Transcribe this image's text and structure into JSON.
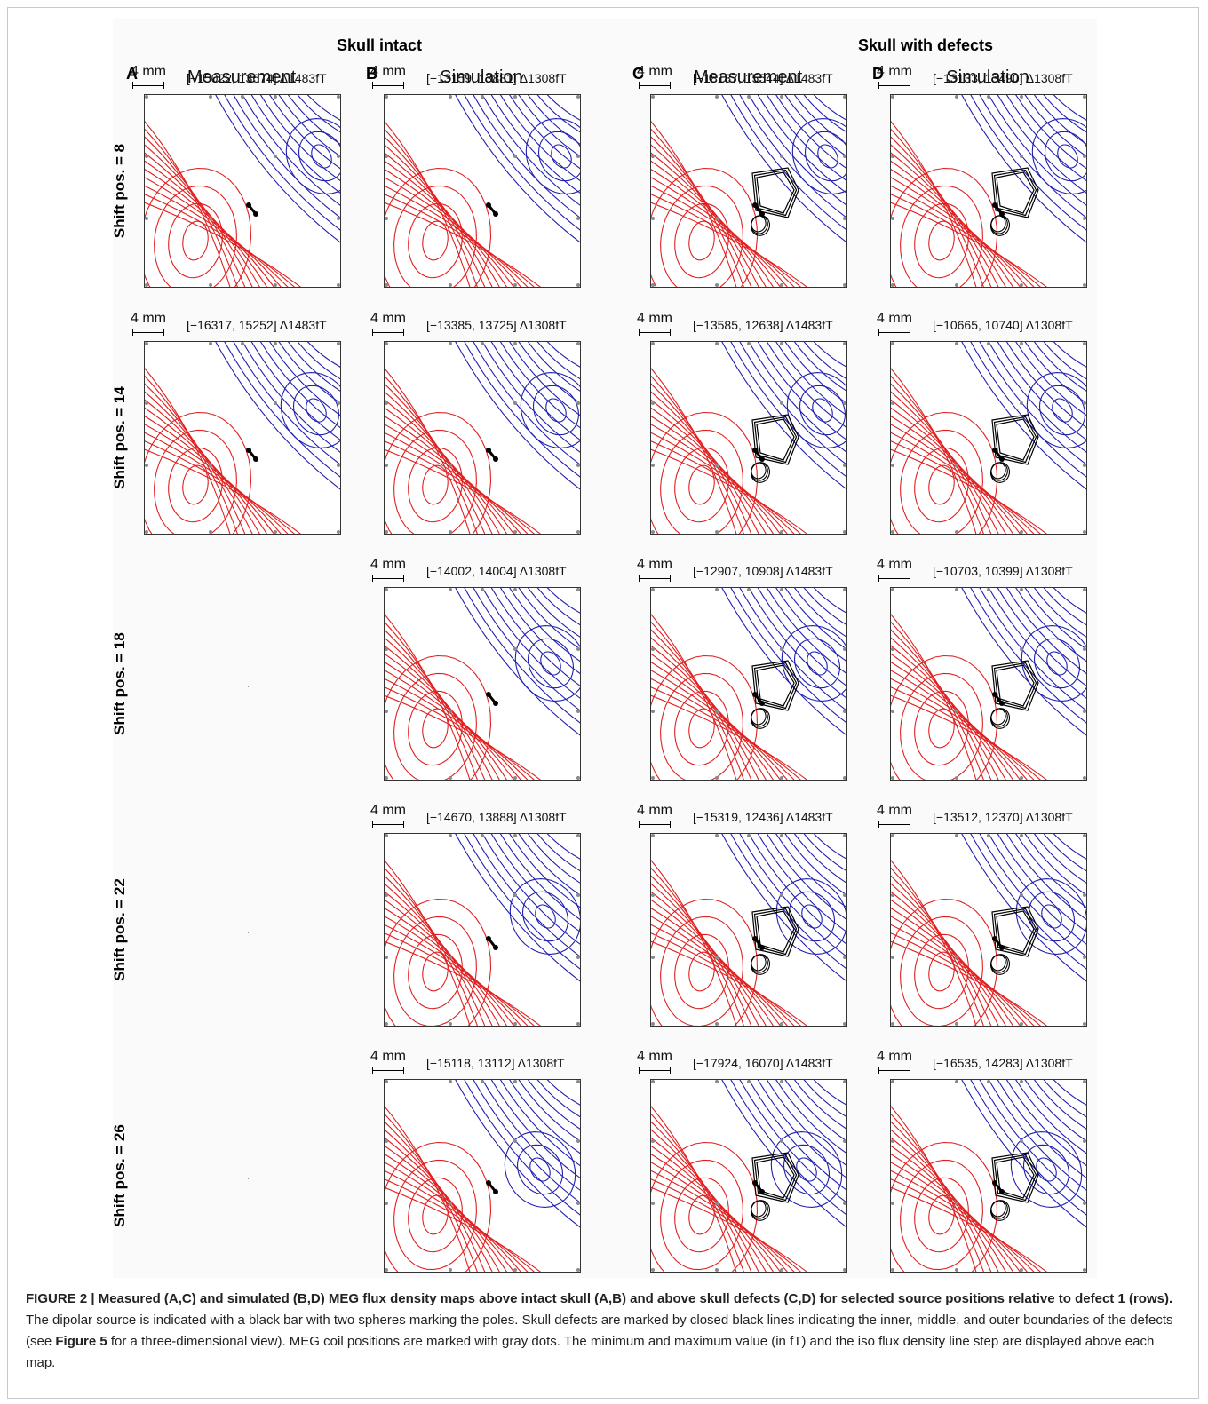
{
  "groups": [
    {
      "label": "Skull intact"
    },
    {
      "label": "Skull with defects"
    }
  ],
  "columns": [
    {
      "letter": "A",
      "title": "Measurement"
    },
    {
      "letter": "B",
      "title": "Simulation"
    },
    {
      "letter": "C",
      "title": "Measurement"
    },
    {
      "letter": "D",
      "title": "Simulation"
    }
  ],
  "rows": [
    {
      "label": "Shift pos. = 8"
    },
    {
      "label": "Shift pos. = 14"
    },
    {
      "label": "Shift pos. = 18"
    },
    {
      "label": "Shift pos. = 22"
    },
    {
      "label": "Shift pos. = 26"
    }
  ],
  "scale_bar": "4 mm",
  "colors": {
    "positive": "#e02020",
    "negative": "#1f1fb0",
    "defect": "#000000",
    "coil": "#8a8a8a"
  },
  "maps": [
    {
      "row": 0,
      "col": 0,
      "range": "[−15022, 13674] Δ1483fT"
    },
    {
      "row": 0,
      "col": 1,
      "range": "[−13159, 13881] Δ1308fT"
    },
    {
      "row": 0,
      "col": 2,
      "range": "[−18187, 15544] Δ1483fT"
    },
    {
      "row": 0,
      "col": 3,
      "range": "[−13133, 13490] Δ1308fT"
    },
    {
      "row": 1,
      "col": 0,
      "range": "[−16317, 15252] Δ1483fT"
    },
    {
      "row": 1,
      "col": 1,
      "range": "[−13385, 13725] Δ1308fT"
    },
    {
      "row": 1,
      "col": 2,
      "range": "[−13585, 12638] Δ1483fT"
    },
    {
      "row": 1,
      "col": 3,
      "range": "[−10665, 10740] Δ1308fT"
    },
    {
      "row": 2,
      "col": 1,
      "range": "[−14002, 14004] Δ1308fT"
    },
    {
      "row": 2,
      "col": 2,
      "range": "[−12907, 10908] Δ1483fT"
    },
    {
      "row": 2,
      "col": 3,
      "range": "[−10703, 10399] Δ1308fT"
    },
    {
      "row": 3,
      "col": 1,
      "range": "[−14670, 13888] Δ1308fT"
    },
    {
      "row": 3,
      "col": 2,
      "range": "[−15319, 12436] Δ1483fT"
    },
    {
      "row": 3,
      "col": 3,
      "range": "[−13512, 12370] Δ1308fT"
    },
    {
      "row": 4,
      "col": 1,
      "range": "[−15118, 13112] Δ1308fT"
    },
    {
      "row": 4,
      "col": 2,
      "range": "[−17924, 16070] Δ1483fT"
    },
    {
      "row": 4,
      "col": 3,
      "range": "[−16535, 14283] Δ1308fT"
    }
  ],
  "caption": {
    "bold": "FIGURE 2 | Measured (A,C) and simulated (B,D) MEG flux density maps above intact skull (A,B) and above skull defects (C,D) for selected source positions relative to defect 1 (rows).",
    "text1": " The dipolar source is indicated with a black bar with two spheres marking the poles. Skull defects are marked by closed black lines indicating the inner, middle, and outer boundaries of the defects (see ",
    "ref": "Figure 5",
    "text2": " for a three-dimensional view). MEG coil positions are marked with gray dots. The minimum and maximum value (in fT) and the iso flux density line step are displayed above each map."
  }
}
